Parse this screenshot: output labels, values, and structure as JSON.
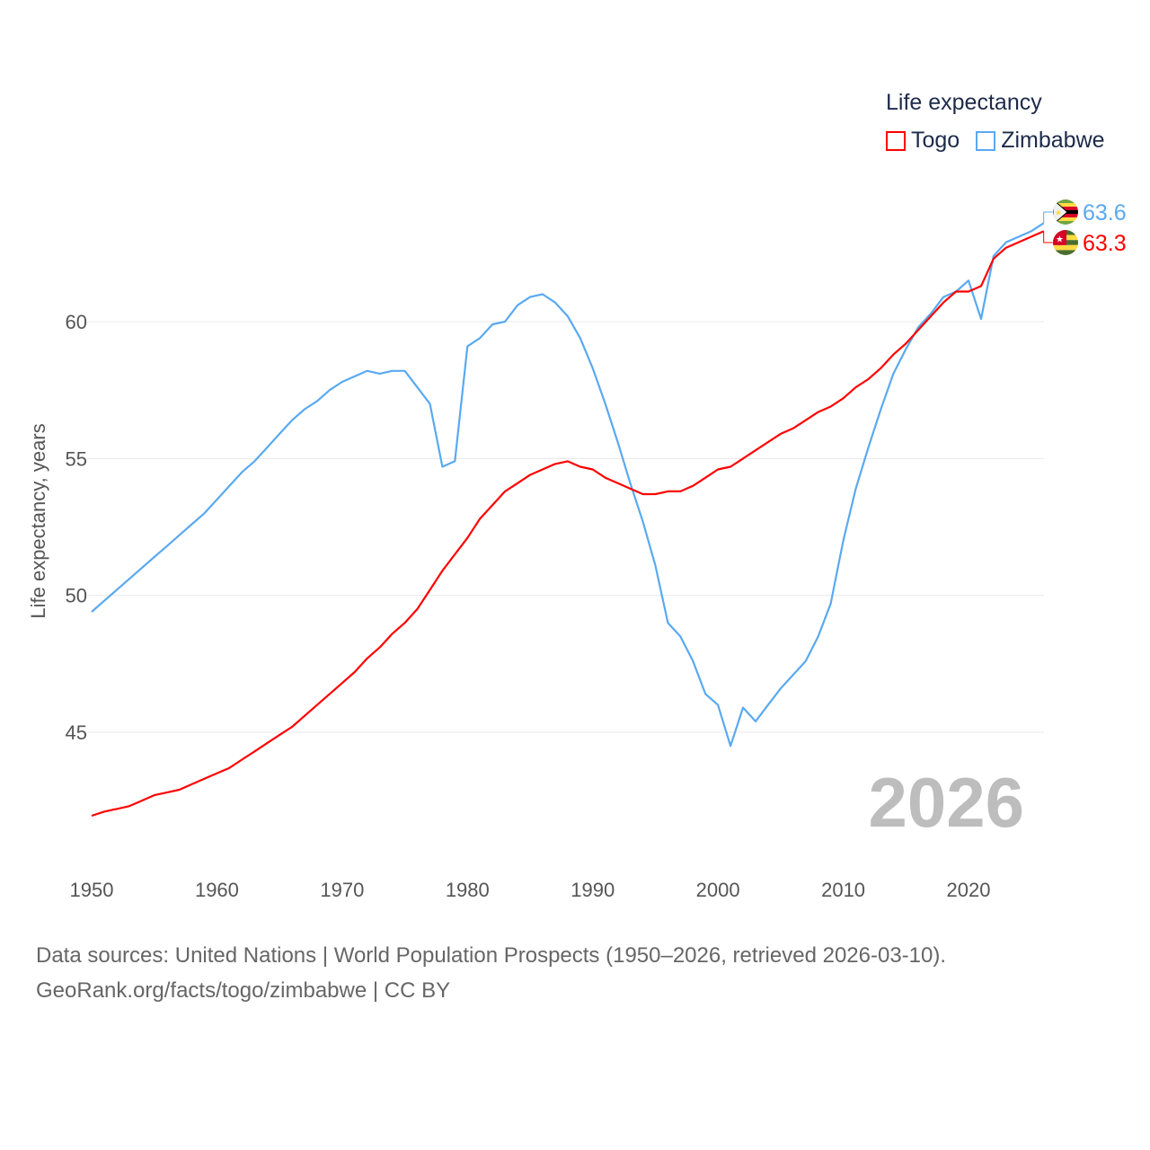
{
  "chart_data": {
    "type": "line",
    "title": "Life expectancy",
    "xlabel": "",
    "ylabel": "Life expectancy, years",
    "xlim": [
      1950,
      2026
    ],
    "ylim": [
      41,
      64
    ],
    "x_ticks": [
      "1950",
      "1960",
      "1970",
      "1980",
      "1990",
      "2000",
      "2010",
      "2020"
    ],
    "y_ticks": [
      "45",
      "50",
      "55",
      "60"
    ],
    "grid": true,
    "legend_position": "top-right",
    "year_label": "2026",
    "series": [
      {
        "name": "Togo",
        "color": "#ff0000",
        "end_label": "63.3",
        "values": [
          41.95,
          42.1,
          42.2,
          42.3,
          42.5,
          42.7,
          42.8,
          42.9,
          43.1,
          43.3,
          43.5,
          43.7,
          44.0,
          44.3,
          44.6,
          44.9,
          45.2,
          45.6,
          46.0,
          46.4,
          46.8,
          47.2,
          47.7,
          48.1,
          48.6,
          49.0,
          49.5,
          50.2,
          50.9,
          51.5,
          52.1,
          52.8,
          53.3,
          53.8,
          54.1,
          54.4,
          54.6,
          54.8,
          54.9,
          54.7,
          54.6,
          54.3,
          54.1,
          53.9,
          53.7,
          53.7,
          53.8,
          53.8,
          54.0,
          54.3,
          54.6,
          54.7,
          55.0,
          55.3,
          55.6,
          55.9,
          56.1,
          56.4,
          56.7,
          56.9,
          57.2,
          57.6,
          57.9,
          58.3,
          58.8,
          59.2,
          59.7,
          60.2,
          60.7,
          61.1,
          61.1,
          61.3,
          62.3,
          62.7,
          62.9,
          63.1,
          63.3
        ]
      },
      {
        "name": "Zimbabwe",
        "color": "#5aa9f0",
        "end_label": "63.6",
        "values": [
          49.4,
          49.8,
          50.2,
          50.6,
          51.0,
          51.4,
          51.8,
          52.2,
          52.6,
          53.0,
          53.5,
          54.0,
          54.5,
          54.9,
          55.4,
          55.9,
          56.4,
          56.8,
          57.1,
          57.5,
          57.8,
          58.0,
          58.2,
          58.1,
          58.2,
          58.2,
          57.6,
          57.0,
          54.7,
          54.9,
          59.1,
          59.4,
          59.9,
          60.0,
          60.6,
          60.9,
          61.0,
          60.7,
          60.2,
          59.4,
          58.3,
          57.0,
          55.6,
          54.1,
          52.7,
          51.1,
          49.0,
          48.5,
          47.6,
          46.4,
          46.0,
          44.5,
          45.9,
          45.4,
          46.0,
          46.6,
          47.1,
          47.6,
          48.5,
          49.7,
          52.0,
          53.9,
          55.4,
          56.8,
          58.1,
          59.0,
          59.8,
          60.3,
          60.9,
          61.1,
          61.5,
          60.1,
          62.4,
          62.9,
          63.1,
          63.3,
          63.6
        ]
      }
    ]
  },
  "source": {
    "line1": "Data sources: United Nations | World Population Prospects (1950–2026, retrieved 2026-03-10).",
    "line2": "GeoRank.org/facts/togo/zimbabwe | CC BY"
  }
}
